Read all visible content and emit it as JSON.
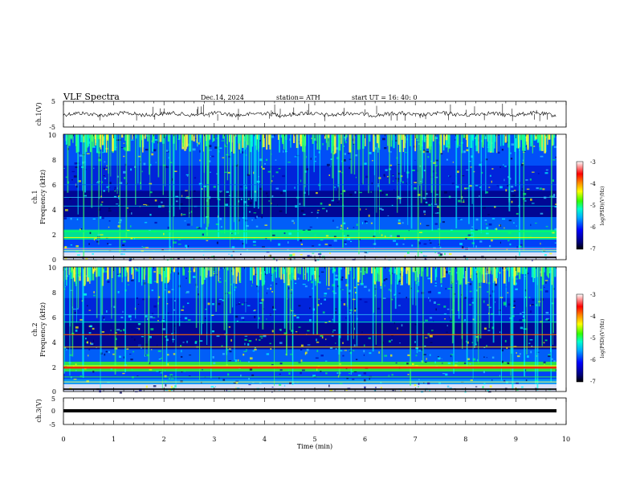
{
  "header": {
    "title": "VLF  Spectra",
    "date": "Dec.14, 2024",
    "station": "station= ATH",
    "start": "start  UT  =   16: 40: 0"
  },
  "chart_data": [
    {
      "type": "line",
      "panel": "ch1-waveform",
      "ylabel": "ch.1(V)",
      "ylim": [
        -5,
        5
      ],
      "yticks": [
        "5",
        "-5"
      ],
      "xlim": [
        0,
        10
      ]
    },
    {
      "type": "heatmap",
      "panel": "ch1-spectrogram",
      "ylabel": [
        "ch.1",
        "Frequency  (kHz)"
      ],
      "ylim": [
        0,
        10
      ],
      "yticks": [
        "0",
        "2",
        "4",
        "6",
        "8",
        "10"
      ],
      "xlim": [
        0,
        10
      ],
      "colorbar": {
        "label": "log(PSD)(V²/Hz)",
        "range": [
          -7,
          -3
        ],
        "ticks": [
          "-3",
          "-4",
          "-5",
          "-6",
          "-7"
        ]
      }
    },
    {
      "type": "heatmap",
      "panel": "ch2-spectrogram",
      "ylabel": [
        "ch.2",
        "Frequency  (kHz)"
      ],
      "ylim": [
        0,
        10
      ],
      "yticks": [
        "0",
        "2",
        "4",
        "6",
        "8",
        "10"
      ],
      "xlim": [
        0,
        10
      ],
      "colorbar": {
        "label": "log(PSD)(V²/Hz)",
        "range": [
          -7,
          -3
        ],
        "ticks": [
          "-3",
          "-4",
          "-5",
          "-6",
          "-7"
        ]
      }
    },
    {
      "type": "line",
      "panel": "ch3-waveform",
      "ylabel": "ch.3(V)",
      "ylim": [
        -5,
        5
      ],
      "yticks": [
        "5",
        "0",
        "-5"
      ],
      "xlim": [
        0,
        10
      ],
      "xlabel": "Time  (min)",
      "xticks": [
        "0",
        "1",
        "2",
        "3",
        "4",
        "5",
        "6",
        "7",
        "8",
        "9",
        "10"
      ]
    }
  ],
  "colors": {
    "colormap": [
      "#000000",
      "#0000cc",
      "#0055ff",
      "#00aaff",
      "#00ffaa",
      "#33ff00",
      "#ffff00",
      "#ff8800",
      "#ff0000",
      "#ffffff"
    ],
    "trace": "#000000"
  }
}
